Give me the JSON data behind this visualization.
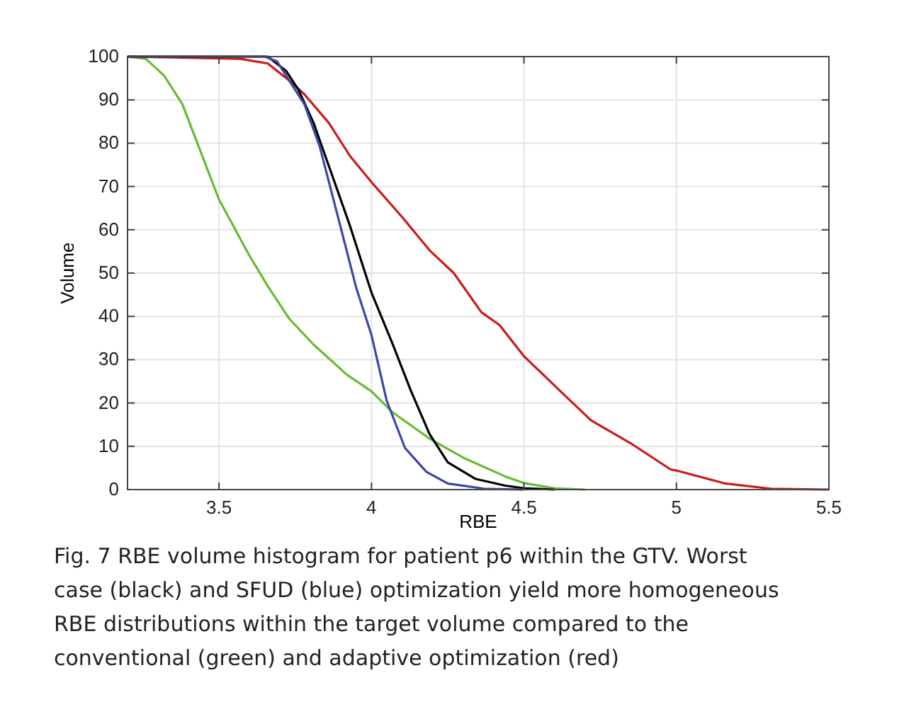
{
  "chart_data": {
    "type": "line",
    "xlabel": "RBE",
    "ylabel": "Volume",
    "xlim": [
      3.2,
      5.5
    ],
    "ylim": [
      0,
      100
    ],
    "xticks": [
      3.5,
      4,
      4.5,
      5,
      5.5
    ],
    "yticks": [
      0,
      10,
      20,
      30,
      40,
      50,
      60,
      70,
      80,
      90,
      100
    ],
    "grid": true,
    "marker": "none",
    "line_style": "solid",
    "series": [
      {
        "color": "#66bb33",
        "x": [
          3.2,
          3.26,
          3.32,
          3.38,
          3.44,
          3.5,
          3.6,
          3.66,
          3.73,
          3.81,
          3.92,
          4.0,
          4.07,
          4.19,
          4.3,
          4.44,
          4.5,
          4.6,
          4.7
        ],
        "values": [
          100,
          99.5,
          95.6,
          89,
          78,
          67,
          54,
          47,
          39.5,
          33.5,
          26.5,
          22.7,
          17.8,
          11.8,
          7.4,
          3,
          1.5,
          0.3,
          0
        ]
      },
      {
        "color": "#cc1a1a",
        "x": [
          3.2,
          3.57,
          3.66,
          3.73,
          3.78,
          3.86,
          3.93,
          4.0,
          4.1,
          4.19,
          4.27,
          4.36,
          4.42,
          4.5,
          4.62,
          4.72,
          4.85,
          4.98,
          5.0,
          5.16,
          5.31,
          5.5
        ],
        "values": [
          100,
          99.5,
          98.4,
          94.5,
          91.3,
          84.7,
          77,
          71,
          63,
          55.3,
          50,
          41,
          38,
          30.8,
          22.7,
          16,
          10.7,
          4.7,
          4.4,
          1.4,
          0.2,
          0
        ]
      },
      {
        "color": "#000000",
        "x": [
          3.2,
          3.66,
          3.72,
          3.76,
          3.81,
          3.87,
          3.93,
          4.0,
          4.07,
          4.13,
          4.19,
          4.25,
          4.34,
          4.44,
          4.5,
          4.6
        ],
        "values": [
          100,
          100,
          96.7,
          92.4,
          84.7,
          72.8,
          60.8,
          45.5,
          33.5,
          22.7,
          12.9,
          6.3,
          2.5,
          0.9,
          0.3,
          0
        ]
      },
      {
        "color": "#3a47a8",
        "x": [
          3.2,
          3.65,
          3.69,
          3.73,
          3.78,
          3.83,
          3.89,
          3.95,
          4.0,
          4.05,
          4.11,
          4.18,
          4.25,
          4.37,
          4.5
        ],
        "values": [
          100,
          100,
          98.9,
          94.5,
          89,
          79.3,
          63,
          46.6,
          35.7,
          20.5,
          9.6,
          4.1,
          1.4,
          0.2,
          0
        ]
      }
    ],
    "annotations": [
      "Fig. 7 RBE volume histogram for patient p6 within the GTV. Worst case (black) and SFUD (blue) optimization yield more homogeneous RBE distributions within the target volume compared to the conventional (green) and adaptive optimization (red)"
    ]
  }
}
